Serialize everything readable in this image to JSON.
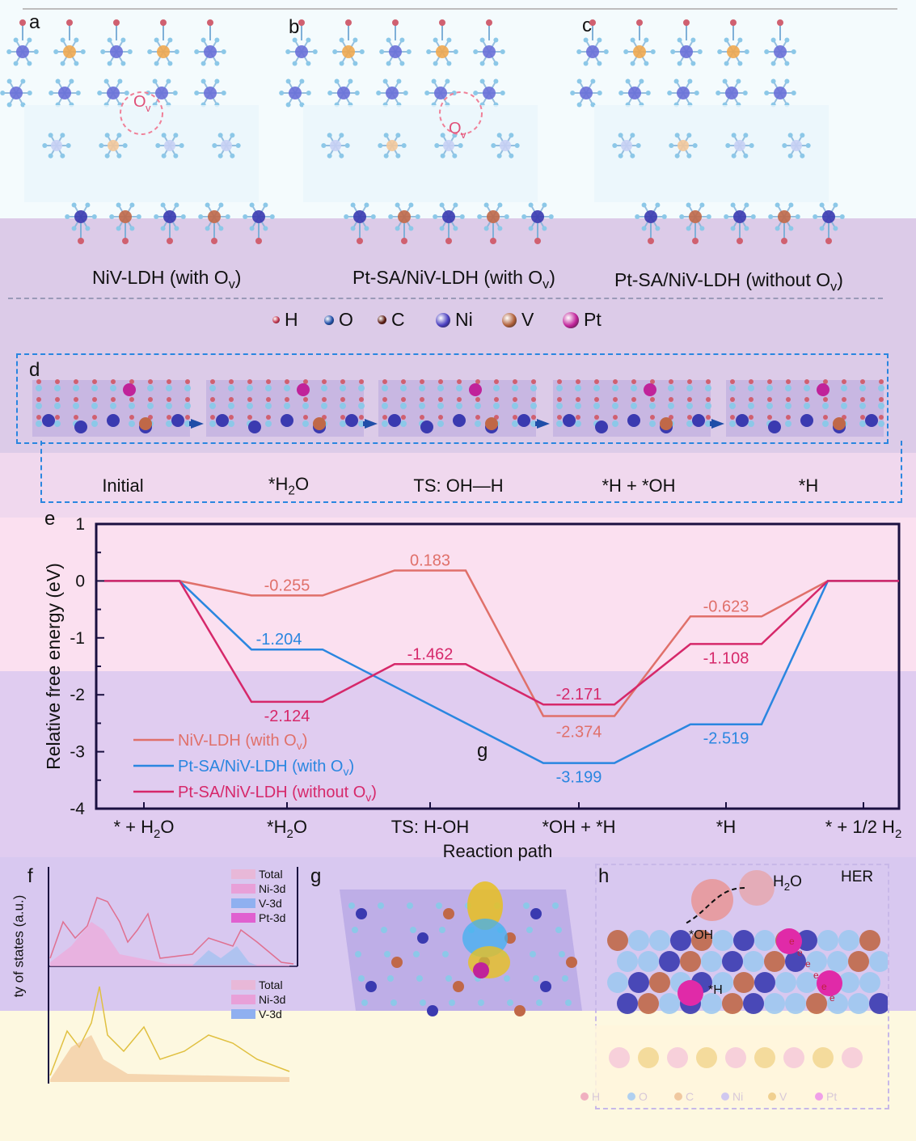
{
  "panels": {
    "a": "a",
    "b": "b",
    "c": "c",
    "d": "d",
    "e": "e",
    "f": "f",
    "g": "g",
    "h": "h"
  },
  "captions": {
    "a": "NiV-LDH (with O",
    "b": "Pt-SA/NiV-LDH (with O",
    "c": "Pt-SA/NiV-LDH (without O",
    "sub_v": "v",
    "close": ")",
    "ov_marker": "O",
    "ov_sub": "v"
  },
  "atom_legend": [
    {
      "label": "H",
      "color": "#c0304a"
    },
    {
      "label": "O",
      "color": "#1f4ea8"
    },
    {
      "label": "C",
      "color": "#5a1a10"
    },
    {
      "label": "Ni",
      "color": "#4a3fc0"
    },
    {
      "label": "V",
      "color": "#b0603a"
    },
    {
      "label": "Pt",
      "color": "#c0239a"
    }
  ],
  "steps": [
    "Initial",
    "*H",
    "TS: OH—H",
    "*H + *OH",
    "*H"
  ],
  "step_water": {
    "prefix": "*H",
    "sub": "2",
    "suffix": "O"
  },
  "chart_data": {
    "type": "line",
    "title": "",
    "xlabel": "Reaction path",
    "ylabel": "Relative free energy (eV)",
    "ylim": [
      -4,
      1
    ],
    "yticks": [
      1,
      0,
      -1,
      -2,
      -3,
      -4
    ],
    "categories": [
      "* + H2O",
      "*H2O",
      "TS: H-OH",
      "*OH + *H",
      "*H",
      "* + 1/2 H2"
    ],
    "series": [
      {
        "name": "NiV-LDH (with Ov)",
        "color": "#e0706a",
        "values": [
          0,
          -0.255,
          0.183,
          -2.374,
          -0.623,
          0
        ],
        "labels": [
          "",
          "-0.255",
          "0.183",
          "-2.374",
          "-0.623",
          ""
        ]
      },
      {
        "name": "Pt-SA/NiV-LDH (with Ov)",
        "color": "#2a86e0",
        "values": [
          0,
          -1.204,
          null,
          -3.199,
          -2.519,
          0
        ],
        "labels": [
          "",
          "-1.204",
          "",
          "-3.199",
          "-2.519",
          ""
        ]
      },
      {
        "name": "Pt-SA/NiV-LDH (without Ov)",
        "color": "#d6286a",
        "values": [
          0,
          -2.124,
          -1.462,
          -2.171,
          -1.108,
          0
        ],
        "labels": [
          "",
          "-2.124",
          "-1.462",
          "-2.171",
          "-1.108",
          ""
        ]
      }
    ],
    "legend_position": "bottom-left",
    "grid": false
  },
  "chart_text": {
    "legend_names": [
      "NiV-LDH (with O",
      "Pt-SA/NiV-LDH (with O",
      "Pt-SA/NiV-LDH (without O"
    ],
    "legend_sub": "v",
    "legend_close": ")",
    "g_marker": "g",
    "xtick_parts": [
      {
        "a": "* + H",
        "sub": "2",
        "b": "O"
      },
      {
        "a": "*H",
        "sub": "2",
        "b": "O"
      },
      {
        "a": "TS: H-OH",
        "sub": "",
        "b": ""
      },
      {
        "a": "*OH + *H",
        "sub": "",
        "b": ""
      },
      {
        "a": "*H",
        "sub": "",
        "b": ""
      },
      {
        "a": "* + 1/2 H",
        "sub": "2",
        "b": ""
      }
    ]
  },
  "dos": {
    "ylabel": "ty of states (a.u.)",
    "legend_top": [
      "Total",
      "Ni-3d",
      "V-3d",
      "Pt-3d"
    ],
    "legend_bottom": [
      "Total",
      "Ni-3d",
      "V-3d"
    ],
    "legend_colors": {
      "Total": "#e8b8d8",
      "Ni-3d": "#e8a0d8",
      "V-3d": "#8fb0f0",
      "Pt-3d": "#e060d0"
    }
  },
  "panel_h": {
    "water": "H",
    "water_sub": "2",
    "water_suffix": "O",
    "her": "HER",
    "oh": "*OH",
    "h": "*H",
    "electron": "e",
    "bottom_legend": [
      "H",
      "O",
      "C",
      "Ni",
      "V",
      "Pt"
    ]
  }
}
